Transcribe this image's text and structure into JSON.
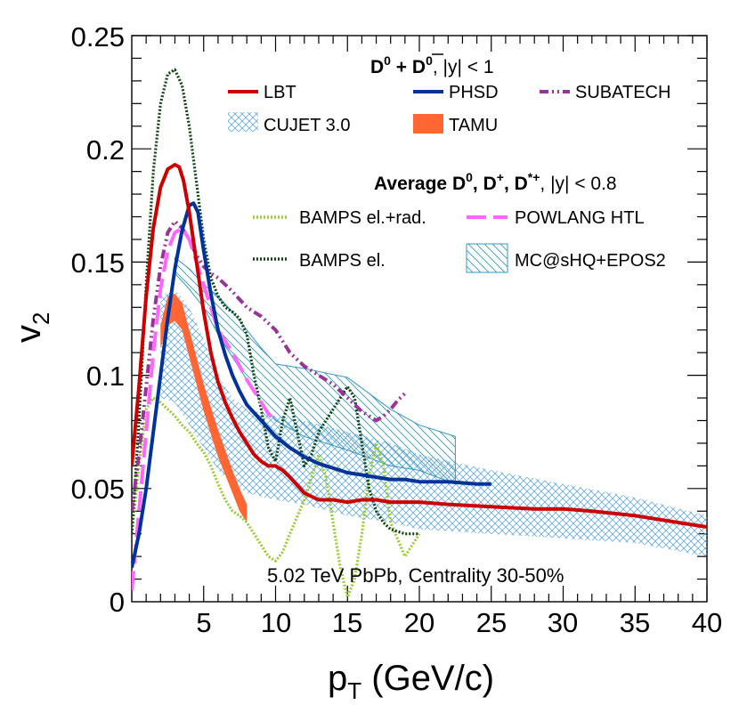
{
  "chart_data": {
    "type": "line",
    "title": "",
    "xlabel": "p",
    "xlabel_sub": "T",
    "xlabel_units": " (GeV/c)",
    "ylabel": "v",
    "ylabel_sub": "2",
    "xlim": [
      0,
      40
    ],
    "ylim": [
      0,
      0.25
    ],
    "x_ticks": [
      5,
      10,
      15,
      20,
      25,
      30,
      35,
      40
    ],
    "y_ticks": [
      0,
      0.05,
      0.1,
      0.15,
      0.2,
      0.25
    ],
    "y_tick_labels": [
      "0",
      "0.05",
      "0.1",
      "0.15",
      "0.2",
      "0.25"
    ],
    "annotation": "5.02 TeV PbPb, Centrality 30-50%",
    "legend_header_1": {
      "base": "D",
      "sup1": "0",
      "plus": " + ",
      "base2": "D",
      "sup2": "0",
      "rest": ", |y| < 1"
    },
    "legend_header_2": {
      "prefix": "Average D",
      "sup1": "0",
      "mid1": ", D",
      "sup2": "+",
      "mid2": ", D",
      "sup3": "*+",
      "rest": ", |y| < 0.8"
    },
    "series": [
      {
        "name": "LBT",
        "color": "#cc0000",
        "style": "solid",
        "x": [
          0,
          0.5,
          1,
          1.5,
          2,
          2.5,
          3,
          3.3,
          3.6,
          4,
          4.5,
          5,
          5.5,
          6,
          6.5,
          7,
          7.5,
          8,
          8.5,
          9,
          9.5,
          10,
          10.5,
          11,
          12,
          13,
          14,
          15,
          16,
          17,
          18,
          20,
          22,
          25,
          28,
          30,
          32,
          35,
          38,
          40
        ],
        "y": [
          0.06,
          0.095,
          0.135,
          0.165,
          0.183,
          0.191,
          0.193,
          0.192,
          0.186,
          0.172,
          0.15,
          0.128,
          0.11,
          0.097,
          0.088,
          0.081,
          0.075,
          0.07,
          0.065,
          0.062,
          0.06,
          0.06,
          0.058,
          0.055,
          0.048,
          0.045,
          0.045,
          0.044,
          0.045,
          0.045,
          0.044,
          0.044,
          0.043,
          0.042,
          0.041,
          0.041,
          0.04,
          0.038,
          0.035,
          0.033
        ]
      },
      {
        "name": "PHSD",
        "color": "#003399",
        "style": "solid",
        "x": [
          0,
          0.5,
          1,
          1.5,
          2,
          2.5,
          3,
          3.5,
          4,
          4.3,
          4.6,
          5,
          5.5,
          6,
          6.5,
          7,
          7.5,
          8,
          9,
          10,
          11,
          12,
          13,
          14,
          15,
          16,
          17,
          18,
          19,
          20,
          22,
          24,
          25
        ],
        "y": [
          0.015,
          0.03,
          0.05,
          0.075,
          0.1,
          0.125,
          0.147,
          0.164,
          0.175,
          0.176,
          0.172,
          0.155,
          0.136,
          0.12,
          0.109,
          0.1,
          0.093,
          0.087,
          0.08,
          0.073,
          0.068,
          0.064,
          0.061,
          0.059,
          0.057,
          0.056,
          0.055,
          0.054,
          0.054,
          0.053,
          0.053,
          0.052,
          0.052
        ]
      },
      {
        "name": "SUBATECH",
        "color": "#993399",
        "style": "dashdotdot",
        "x": [
          0,
          0.5,
          1,
          1.5,
          2,
          2.5,
          3,
          3.5,
          4,
          4.5,
          5,
          5.5,
          6,
          6.5,
          7,
          8,
          9,
          10,
          11,
          12,
          13,
          14,
          15,
          16,
          16.5,
          17,
          17.5,
          18,
          18.5,
          19
        ],
        "y": [
          0.04,
          0.065,
          0.095,
          0.125,
          0.148,
          0.163,
          0.168,
          0.165,
          0.16,
          0.153,
          0.148,
          0.145,
          0.143,
          0.14,
          0.137,
          0.13,
          0.126,
          0.12,
          0.11,
          0.104,
          0.1,
          0.096,
          0.09,
          0.084,
          0.082,
          0.08,
          0.082,
          0.085,
          0.089,
          0.092
        ]
      },
      {
        "name": "POWLANG HTL",
        "color": "#ff66ff",
        "style": "dashed",
        "x": [
          0,
          0.5,
          1,
          1.5,
          2,
          2.5,
          3,
          3.5,
          4,
          4.5,
          5,
          5.5,
          6,
          6.5,
          7,
          7.5,
          8,
          8.5,
          9,
          9.5,
          10
        ],
        "y": [
          0.005,
          0.04,
          0.075,
          0.11,
          0.138,
          0.155,
          0.163,
          0.165,
          0.16,
          0.15,
          0.14,
          0.13,
          0.12,
          0.115,
          0.11,
          0.104,
          0.098,
          0.093,
          0.088,
          0.083,
          0.08
        ]
      },
      {
        "name": "BAMPS el.+rad.",
        "color": "#99cc33",
        "style": "dotted",
        "x": [
          0,
          0.5,
          1,
          1.5,
          2,
          2.5,
          3,
          3.5,
          4,
          4.5,
          5,
          5.5,
          6,
          6.5,
          7,
          7.5,
          8,
          8.5,
          9,
          9.5,
          10,
          10.5,
          11,
          12,
          12.5,
          13,
          13.5,
          14,
          14.5,
          15,
          15.5,
          16,
          16.5,
          17,
          17.5,
          18,
          19,
          20
        ],
        "y": [
          0.03,
          0.06,
          0.085,
          0.09,
          0.088,
          0.085,
          0.082,
          0.078,
          0.075,
          0.07,
          0.066,
          0.06,
          0.052,
          0.045,
          0.04,
          0.038,
          0.035,
          0.03,
          0.025,
          0.02,
          0.018,
          0.022,
          0.03,
          0.045,
          0.055,
          0.065,
          0.055,
          0.035,
          0.015,
          0.002,
          0.01,
          0.03,
          0.055,
          0.07,
          0.06,
          0.035,
          0.02,
          0.03
        ]
      },
      {
        "name": "BAMPS el.",
        "color": "#114411",
        "style": "dotted",
        "x": [
          0,
          0.5,
          1,
          1.5,
          2,
          2.5,
          3,
          3.5,
          4,
          4.5,
          5,
          5.5,
          6,
          6.5,
          7,
          7.5,
          8,
          8.5,
          9,
          9.5,
          10,
          10.5,
          11,
          11.5,
          12,
          12.5,
          13,
          14,
          15,
          15.5,
          16,
          16.5,
          17,
          17.5,
          18,
          19,
          20
        ],
        "y": [
          0.03,
          0.08,
          0.14,
          0.19,
          0.22,
          0.233,
          0.235,
          0.228,
          0.21,
          0.185,
          0.16,
          0.143,
          0.135,
          0.13,
          0.128,
          0.125,
          0.118,
          0.1,
          0.085,
          0.068,
          0.062,
          0.08,
          0.09,
          0.075,
          0.06,
          0.065,
          0.075,
          0.085,
          0.095,
          0.09,
          0.07,
          0.05,
          0.04,
          0.035,
          0.032,
          0.03,
          0.03
        ]
      }
    ],
    "bands": [
      {
        "name": "TAMU",
        "color": "#ff6633",
        "style": "filled",
        "x": [
          2,
          2.5,
          3,
          3.5,
          4,
          4.5,
          5,
          5.5,
          6,
          6.5,
          7,
          7.5,
          8
        ],
        "upper": [
          0.122,
          0.135,
          0.136,
          0.132,
          0.12,
          0.108,
          0.096,
          0.086,
          0.076,
          0.067,
          0.058,
          0.05,
          0.043
        ],
        "lower": [
          0.112,
          0.122,
          0.124,
          0.12,
          0.108,
          0.096,
          0.084,
          0.074,
          0.064,
          0.056,
          0.048,
          0.04,
          0.035
        ]
      },
      {
        "name": "CUJET 3.0",
        "color": "#66aadd",
        "style": "crosshatch",
        "x": [
          2,
          3,
          4,
          5,
          6,
          7,
          8,
          10,
          12,
          15,
          18,
          20,
          25,
          30,
          35,
          40
        ],
        "upper": [
          0.135,
          0.138,
          0.13,
          0.116,
          0.1,
          0.09,
          0.085,
          0.082,
          0.08,
          0.075,
          0.07,
          0.065,
          0.058,
          0.052,
          0.046,
          0.038
        ],
        "lower": [
          0.09,
          0.088,
          0.078,
          0.068,
          0.058,
          0.052,
          0.048,
          0.045,
          0.043,
          0.038,
          0.035,
          0.032,
          0.03,
          0.028,
          0.026,
          0.02
        ]
      },
      {
        "name": "MC@sHQ+EPOS2",
        "color": "#3399bb",
        "style": "diagonal",
        "x": [
          3,
          4,
          5,
          6,
          7,
          8,
          9,
          10,
          12,
          15,
          18,
          20,
          22.5
        ],
        "upper": [
          0.152,
          0.147,
          0.14,
          0.135,
          0.128,
          0.12,
          0.112,
          0.105,
          0.103,
          0.099,
          0.085,
          0.078,
          0.073
        ],
        "lower": [
          0.145,
          0.138,
          0.13,
          0.118,
          0.108,
          0.098,
          0.088,
          0.08,
          0.073,
          0.067,
          0.06,
          0.058,
          0.052
        ]
      }
    ]
  }
}
